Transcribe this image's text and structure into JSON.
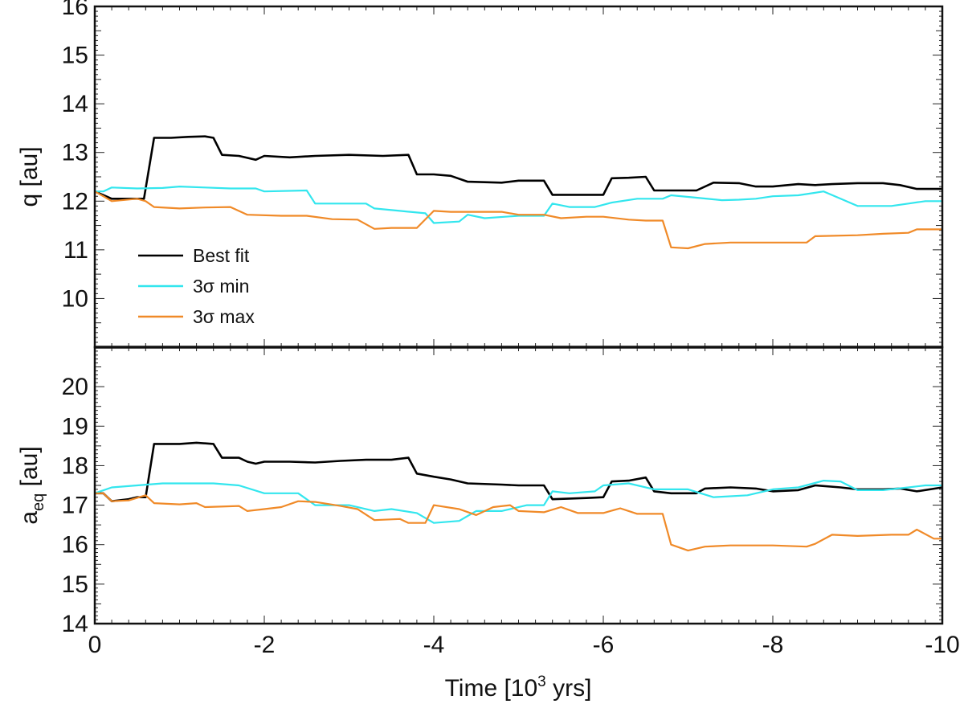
{
  "chart_data": [
    {
      "type": "line",
      "panel": "top",
      "ylabel": "q [au]",
      "xlim": [
        0,
        -10
      ],
      "ylim": [
        9,
        16
      ],
      "yticks": [
        10,
        11,
        12,
        13,
        14,
        15,
        16
      ],
      "legend": "bottom-left",
      "series": [
        {
          "name": "Best fit",
          "color": "#000000",
          "points": [
            [
              0,
              12.2
            ],
            [
              -0.2,
              12.05
            ],
            [
              -0.4,
              12.05
            ],
            [
              -0.58,
              12.05
            ],
            [
              -0.7,
              13.3
            ],
            [
              -0.9,
              13.3
            ],
            [
              -1.1,
              13.32
            ],
            [
              -1.3,
              13.33
            ],
            [
              -1.4,
              13.3
            ],
            [
              -1.5,
              12.95
            ],
            [
              -1.7,
              12.93
            ],
            [
              -1.9,
              12.85
            ],
            [
              -2.0,
              12.93
            ],
            [
              -2.3,
              12.9
            ],
            [
              -2.6,
              12.93
            ],
            [
              -3.0,
              12.95
            ],
            [
              -3.4,
              12.93
            ],
            [
              -3.7,
              12.95
            ],
            [
              -3.8,
              12.55
            ],
            [
              -4.0,
              12.55
            ],
            [
              -4.2,
              12.52
            ],
            [
              -4.4,
              12.4
            ],
            [
              -4.8,
              12.38
            ],
            [
              -5.0,
              12.42
            ],
            [
              -5.3,
              12.42
            ],
            [
              -5.4,
              12.13
            ],
            [
              -5.7,
              12.13
            ],
            [
              -6.0,
              12.13
            ],
            [
              -6.1,
              12.47
            ],
            [
              -6.3,
              12.48
            ],
            [
              -6.5,
              12.5
            ],
            [
              -6.6,
              12.22
            ],
            [
              -7.0,
              12.22
            ],
            [
              -7.1,
              12.22
            ],
            [
              -7.3,
              12.38
            ],
            [
              -7.6,
              12.37
            ],
            [
              -7.8,
              12.3
            ],
            [
              -8.0,
              12.3
            ],
            [
              -8.3,
              12.35
            ],
            [
              -8.5,
              12.33
            ],
            [
              -8.7,
              12.35
            ],
            [
              -9.0,
              12.37
            ],
            [
              -9.3,
              12.37
            ],
            [
              -9.5,
              12.33
            ],
            [
              -9.7,
              12.25
            ],
            [
              -10.0,
              12.25
            ]
          ]
        },
        {
          "name": "3σ min",
          "color": "#33e6ee",
          "points": [
            [
              0,
              12.2
            ],
            [
              -0.1,
              12.2
            ],
            [
              -0.2,
              12.28
            ],
            [
              -0.5,
              12.26
            ],
            [
              -0.8,
              12.27
            ],
            [
              -1.0,
              12.3
            ],
            [
              -1.3,
              12.28
            ],
            [
              -1.6,
              12.26
            ],
            [
              -1.9,
              12.26
            ],
            [
              -2.0,
              12.2
            ],
            [
              -2.5,
              12.22
            ],
            [
              -2.6,
              11.95
            ],
            [
              -3.0,
              11.95
            ],
            [
              -3.2,
              11.95
            ],
            [
              -3.3,
              11.85
            ],
            [
              -3.6,
              11.8
            ],
            [
              -3.9,
              11.75
            ],
            [
              -4.0,
              11.55
            ],
            [
              -4.3,
              11.58
            ],
            [
              -4.4,
              11.72
            ],
            [
              -4.6,
              11.65
            ],
            [
              -5.0,
              11.7
            ],
            [
              -5.3,
              11.7
            ],
            [
              -5.4,
              11.95
            ],
            [
              -5.6,
              11.88
            ],
            [
              -5.9,
              11.88
            ],
            [
              -6.1,
              11.97
            ],
            [
              -6.4,
              12.05
            ],
            [
              -6.7,
              12.05
            ],
            [
              -6.8,
              12.12
            ],
            [
              -7.1,
              12.07
            ],
            [
              -7.4,
              12.02
            ],
            [
              -7.6,
              12.03
            ],
            [
              -7.8,
              12.05
            ],
            [
              -8.0,
              12.1
            ],
            [
              -8.3,
              12.12
            ],
            [
              -8.6,
              12.2
            ],
            [
              -8.8,
              12.05
            ],
            [
              -9.0,
              11.9
            ],
            [
              -9.4,
              11.9
            ],
            [
              -9.6,
              11.95
            ],
            [
              -9.8,
              12.0
            ],
            [
              -10.0,
              12.0
            ]
          ]
        },
        {
          "name": "3σ max",
          "color": "#f08a28",
          "points": [
            [
              0,
              12.2
            ],
            [
              -0.1,
              12.1
            ],
            [
              -0.2,
              12.0
            ],
            [
              -0.5,
              12.05
            ],
            [
              -0.6,
              12.0
            ],
            [
              -0.7,
              11.88
            ],
            [
              -1.0,
              11.85
            ],
            [
              -1.3,
              11.87
            ],
            [
              -1.6,
              11.88
            ],
            [
              -1.8,
              11.72
            ],
            [
              -2.2,
              11.7
            ],
            [
              -2.5,
              11.7
            ],
            [
              -2.8,
              11.63
            ],
            [
              -3.1,
              11.62
            ],
            [
              -3.3,
              11.43
            ],
            [
              -3.5,
              11.45
            ],
            [
              -3.8,
              11.45
            ],
            [
              -4.0,
              11.8
            ],
            [
              -4.2,
              11.78
            ],
            [
              -4.8,
              11.78
            ],
            [
              -5.0,
              11.72
            ],
            [
              -5.3,
              11.72
            ],
            [
              -5.5,
              11.65
            ],
            [
              -5.8,
              11.68
            ],
            [
              -6.0,
              11.68
            ],
            [
              -6.3,
              11.62
            ],
            [
              -6.5,
              11.6
            ],
            [
              -6.7,
              11.6
            ],
            [
              -6.8,
              11.05
            ],
            [
              -7.0,
              11.03
            ],
            [
              -7.2,
              11.12
            ],
            [
              -7.5,
              11.15
            ],
            [
              -8.0,
              11.15
            ],
            [
              -8.4,
              11.15
            ],
            [
              -8.5,
              11.28
            ],
            [
              -9.0,
              11.3
            ],
            [
              -9.3,
              11.33
            ],
            [
              -9.6,
              11.35
            ],
            [
              -9.7,
              11.42
            ],
            [
              -10.0,
              11.42
            ]
          ]
        }
      ]
    },
    {
      "type": "line",
      "panel": "bottom",
      "ylabel": "aeq [au]",
      "ylabel_main": "a",
      "ylabel_sub": "eq",
      "ylabel_rest": " [au]",
      "xlabel_pre": "Time [10",
      "xlabel_sup": "3",
      "xlabel_post": " yrs]",
      "xlim": [
        0,
        -10
      ],
      "ylim": [
        14,
        21
      ],
      "yticks": [
        14,
        15,
        16,
        17,
        18,
        19,
        20
      ],
      "xticks": [
        0,
        -2,
        -4,
        -6,
        -8,
        -10
      ],
      "series": [
        {
          "name": "Best fit",
          "color": "#000000",
          "points": [
            [
              0,
              17.3
            ],
            [
              -0.1,
              17.3
            ],
            [
              -0.2,
              17.1
            ],
            [
              -0.4,
              17.15
            ],
            [
              -0.5,
              17.2
            ],
            [
              -0.6,
              17.2
            ],
            [
              -0.7,
              18.55
            ],
            [
              -1.0,
              18.55
            ],
            [
              -1.2,
              18.58
            ],
            [
              -1.4,
              18.55
            ],
            [
              -1.5,
              18.2
            ],
            [
              -1.7,
              18.2
            ],
            [
              -1.8,
              18.1
            ],
            [
              -1.9,
              18.05
            ],
            [
              -2.0,
              18.1
            ],
            [
              -2.3,
              18.1
            ],
            [
              -2.6,
              18.08
            ],
            [
              -2.9,
              18.12
            ],
            [
              -3.2,
              18.15
            ],
            [
              -3.5,
              18.15
            ],
            [
              -3.7,
              18.2
            ],
            [
              -3.8,
              17.8
            ],
            [
              -4.0,
              17.72
            ],
            [
              -4.2,
              17.65
            ],
            [
              -4.4,
              17.55
            ],
            [
              -4.8,
              17.52
            ],
            [
              -5.0,
              17.5
            ],
            [
              -5.3,
              17.5
            ],
            [
              -5.4,
              17.15
            ],
            [
              -5.8,
              17.18
            ],
            [
              -6.0,
              17.2
            ],
            [
              -6.1,
              17.6
            ],
            [
              -6.3,
              17.62
            ],
            [
              -6.5,
              17.7
            ],
            [
              -6.6,
              17.35
            ],
            [
              -6.8,
              17.3
            ],
            [
              -7.1,
              17.3
            ],
            [
              -7.2,
              17.42
            ],
            [
              -7.5,
              17.45
            ],
            [
              -7.8,
              17.42
            ],
            [
              -8.0,
              17.35
            ],
            [
              -8.3,
              17.38
            ],
            [
              -8.5,
              17.5
            ],
            [
              -8.8,
              17.45
            ],
            [
              -9.0,
              17.4
            ],
            [
              -9.3,
              17.4
            ],
            [
              -9.5,
              17.42
            ],
            [
              -9.7,
              17.35
            ],
            [
              -10.0,
              17.45
            ]
          ]
        },
        {
          "name": "3σ min",
          "color": "#33e6ee",
          "points": [
            [
              0,
              17.3
            ],
            [
              -0.2,
              17.45
            ],
            [
              -0.5,
              17.5
            ],
            [
              -0.8,
              17.55
            ],
            [
              -1.1,
              17.55
            ],
            [
              -1.4,
              17.55
            ],
            [
              -1.7,
              17.5
            ],
            [
              -2.0,
              17.3
            ],
            [
              -2.4,
              17.3
            ],
            [
              -2.6,
              17.0
            ],
            [
              -3.0,
              17.0
            ],
            [
              -3.3,
              16.85
            ],
            [
              -3.5,
              16.9
            ],
            [
              -3.8,
              16.8
            ],
            [
              -4.0,
              16.55
            ],
            [
              -4.3,
              16.6
            ],
            [
              -4.5,
              16.85
            ],
            [
              -4.8,
              16.85
            ],
            [
              -5.1,
              17.0
            ],
            [
              -5.3,
              17.0
            ],
            [
              -5.4,
              17.35
            ],
            [
              -5.6,
              17.3
            ],
            [
              -5.9,
              17.35
            ],
            [
              -6.0,
              17.5
            ],
            [
              -6.3,
              17.55
            ],
            [
              -6.6,
              17.4
            ],
            [
              -7.0,
              17.4
            ],
            [
              -7.3,
              17.2
            ],
            [
              -7.7,
              17.25
            ],
            [
              -8.0,
              17.4
            ],
            [
              -8.3,
              17.45
            ],
            [
              -8.6,
              17.62
            ],
            [
              -8.8,
              17.6
            ],
            [
              -9.0,
              17.38
            ],
            [
              -9.3,
              17.38
            ],
            [
              -9.6,
              17.45
            ],
            [
              -9.8,
              17.5
            ],
            [
              -10.0,
              17.5
            ]
          ]
        },
        {
          "name": "3σ max",
          "color": "#f08a28",
          "points": [
            [
              0,
              17.3
            ],
            [
              -0.1,
              17.3
            ],
            [
              -0.2,
              17.1
            ],
            [
              -0.4,
              17.12
            ],
            [
              -0.6,
              17.25
            ],
            [
              -0.7,
              17.05
            ],
            [
              -1.0,
              17.02
            ],
            [
              -1.2,
              17.05
            ],
            [
              -1.3,
              16.95
            ],
            [
              -1.7,
              16.98
            ],
            [
              -1.8,
              16.85
            ],
            [
              -2.0,
              16.9
            ],
            [
              -2.2,
              16.95
            ],
            [
              -2.4,
              17.1
            ],
            [
              -2.6,
              17.08
            ],
            [
              -2.9,
              16.98
            ],
            [
              -3.1,
              16.9
            ],
            [
              -3.3,
              16.62
            ],
            [
              -3.6,
              16.65
            ],
            [
              -3.7,
              16.55
            ],
            [
              -3.9,
              16.55
            ],
            [
              -4.0,
              17.0
            ],
            [
              -4.3,
              16.9
            ],
            [
              -4.5,
              16.75
            ],
            [
              -4.7,
              16.95
            ],
            [
              -4.9,
              17.0
            ],
            [
              -5.0,
              16.85
            ],
            [
              -5.3,
              16.82
            ],
            [
              -5.5,
              16.95
            ],
            [
              -5.7,
              16.8
            ],
            [
              -6.0,
              16.8
            ],
            [
              -6.2,
              16.92
            ],
            [
              -6.4,
              16.78
            ],
            [
              -6.7,
              16.78
            ],
            [
              -6.8,
              16.0
            ],
            [
              -7.0,
              15.85
            ],
            [
              -7.2,
              15.95
            ],
            [
              -7.5,
              15.98
            ],
            [
              -8.0,
              15.98
            ],
            [
              -8.4,
              15.95
            ],
            [
              -8.5,
              16.02
            ],
            [
              -8.7,
              16.25
            ],
            [
              -9.0,
              16.22
            ],
            [
              -9.4,
              16.25
            ],
            [
              -9.6,
              16.25
            ],
            [
              -9.7,
              16.38
            ],
            [
              -9.9,
              16.15
            ],
            [
              -10.0,
              16.15
            ]
          ]
        }
      ]
    }
  ]
}
